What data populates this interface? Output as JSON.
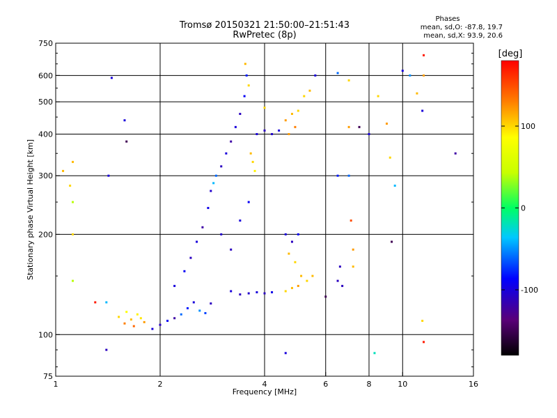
{
  "header": {
    "title": "Tromsø 20150321 21:50:00–21:51:43",
    "subtitle": "RwPretec (8p)"
  },
  "stats": {
    "heading": "Phases",
    "line_o": "mean, sd,O: -87.8, 19.7",
    "line_x": "mean, sd,X:  93.9, 20.6"
  },
  "colorbar": {
    "unit_label": "[deg]",
    "ticks": [
      {
        "value": 100,
        "label": "100"
      },
      {
        "value": 0,
        "label": "0"
      },
      {
        "value": -100,
        "label": "-100"
      }
    ],
    "range": [
      -180,
      180
    ],
    "colors": [
      "#000000",
      "#5a0078",
      "#0000ff",
      "#00c8ff",
      "#00ff64",
      "#c8ff00",
      "#ffff00",
      "#ff8000",
      "#ff0000"
    ]
  },
  "chart_data": {
    "type": "scatter",
    "title": "Tromsø 20150321 21:50:00–21:51:43",
    "subtitle": "RwPretec (8p)",
    "xlabel": "Frequency [MHz]",
    "ylabel": "Stationary phase Virtual Height [km]",
    "x_scale": "log2",
    "y_scale": "log",
    "xlim": [
      1,
      16
    ],
    "ylim": [
      75,
      750
    ],
    "x_ticks": [
      {
        "value": 1,
        "label": "1"
      },
      {
        "value": 2,
        "label": "2"
      },
      {
        "value": 4,
        "label": "4"
      },
      {
        "value": 6,
        "label": "6"
      },
      {
        "value": 8,
        "label": "8"
      },
      {
        "value": 10,
        "label": "10"
      },
      {
        "value": 16,
        "label": "16"
      }
    ],
    "y_ticks": [
      {
        "value": 75,
        "label": "75"
      },
      {
        "value": 100,
        "label": "100"
      },
      {
        "value": 200,
        "label": "200"
      },
      {
        "value": 300,
        "label": "300"
      },
      {
        "value": 400,
        "label": "400"
      },
      {
        "value": 500,
        "label": "500"
      },
      {
        "value": 600,
        "label": "600"
      },
      {
        "value": 750,
        "label": "750"
      }
    ],
    "x_gridlines": [
      2,
      4,
      6,
      8,
      10
    ],
    "y_gridlines": [
      100,
      200,
      300,
      400,
      500,
      600
    ],
    "grid": true,
    "color_variable": "phase (deg)",
    "color_range": [
      -180,
      180
    ],
    "points": [
      {
        "f": 1.52,
        "h": 113,
        "phase": 100
      },
      {
        "f": 1.58,
        "h": 108,
        "phase": 130
      },
      {
        "f": 1.65,
        "h": 111,
        "phase": 110
      },
      {
        "f": 1.72,
        "h": 115,
        "phase": 90
      },
      {
        "f": 1.8,
        "h": 109,
        "phase": 120
      },
      {
        "f": 1.6,
        "h": 117,
        "phase": 85
      },
      {
        "f": 1.68,
        "h": 106,
        "phase": 140
      },
      {
        "f": 1.76,
        "h": 112,
        "phase": 95
      },
      {
        "f": 1.9,
        "h": 104,
        "phase": -100
      },
      {
        "f": 2.0,
        "h": 107,
        "phase": -110
      },
      {
        "f": 2.1,
        "h": 110,
        "phase": -90
      },
      {
        "f": 2.2,
        "h": 112,
        "phase": -120
      },
      {
        "f": 2.3,
        "h": 115,
        "phase": -60
      },
      {
        "f": 2.4,
        "h": 120,
        "phase": -80
      },
      {
        "f": 2.5,
        "h": 125,
        "phase": -100
      },
      {
        "f": 2.6,
        "h": 118,
        "phase": -50
      },
      {
        "f": 2.7,
        "h": 116,
        "phase": -70
      },
      {
        "f": 2.8,
        "h": 124,
        "phase": -110
      },
      {
        "f": 2.2,
        "h": 140,
        "phase": -100
      },
      {
        "f": 2.35,
        "h": 155,
        "phase": -90
      },
      {
        "f": 2.45,
        "h": 170,
        "phase": -110
      },
      {
        "f": 2.55,
        "h": 190,
        "phase": -100
      },
      {
        "f": 2.65,
        "h": 210,
        "phase": -120
      },
      {
        "f": 2.75,
        "h": 240,
        "phase": -95
      },
      {
        "f": 2.8,
        "h": 270,
        "phase": -105
      },
      {
        "f": 2.9,
        "h": 300,
        "phase": -60
      },
      {
        "f": 2.85,
        "h": 285,
        "phase": -40
      },
      {
        "f": 3.0,
        "h": 320,
        "phase": -110
      },
      {
        "f": 3.1,
        "h": 350,
        "phase": -100
      },
      {
        "f": 3.2,
        "h": 380,
        "phase": -120
      },
      {
        "f": 3.3,
        "h": 420,
        "phase": -100
      },
      {
        "f": 3.4,
        "h": 460,
        "phase": -110
      },
      {
        "f": 3.5,
        "h": 520,
        "phase": -90
      },
      {
        "f": 3.55,
        "h": 600,
        "phase": -80
      },
      {
        "f": 3.52,
        "h": 650,
        "phase": 110
      },
      {
        "f": 3.6,
        "h": 560,
        "phase": 100
      },
      {
        "f": 3.65,
        "h": 350,
        "phase": 110
      },
      {
        "f": 3.7,
        "h": 330,
        "phase": 100
      },
      {
        "f": 3.75,
        "h": 310,
        "phase": 90
      },
      {
        "f": 3.2,
        "h": 135,
        "phase": -100
      },
      {
        "f": 3.4,
        "h": 132,
        "phase": -110
      },
      {
        "f": 3.6,
        "h": 133,
        "phase": -105
      },
      {
        "f": 3.8,
        "h": 134,
        "phase": -100
      },
      {
        "f": 4.0,
        "h": 133,
        "phase": -110
      },
      {
        "f": 4.2,
        "h": 134,
        "phase": -95
      },
      {
        "f": 3.0,
        "h": 200,
        "phase": -105
      },
      {
        "f": 3.2,
        "h": 180,
        "phase": -110
      },
      {
        "f": 3.4,
        "h": 220,
        "phase": -100
      },
      {
        "f": 3.6,
        "h": 250,
        "phase": -90
      },
      {
        "f": 3.8,
        "h": 400,
        "phase": -100
      },
      {
        "f": 4.0,
        "h": 410,
        "phase": -110
      },
      {
        "f": 4.2,
        "h": 400,
        "phase": -105
      },
      {
        "f": 4.4,
        "h": 410,
        "phase": -100
      },
      {
        "f": 4.0,
        "h": 480,
        "phase": 100
      },
      {
        "f": 4.6,
        "h": 440,
        "phase": 120
      },
      {
        "f": 4.8,
        "h": 460,
        "phase": 110
      },
      {
        "f": 5.0,
        "h": 470,
        "phase": 100
      },
      {
        "f": 4.9,
        "h": 420,
        "phase": 130
      },
      {
        "f": 4.7,
        "h": 400,
        "phase": 120
      },
      {
        "f": 5.2,
        "h": 520,
        "phase": 100
      },
      {
        "f": 5.4,
        "h": 540,
        "phase": 110
      },
      {
        "f": 4.6,
        "h": 200,
        "phase": -100
      },
      {
        "f": 4.8,
        "h": 190,
        "phase": -110
      },
      {
        "f": 5.0,
        "h": 200,
        "phase": -90
      },
      {
        "f": 4.7,
        "h": 175,
        "phase": 110
      },
      {
        "f": 4.9,
        "h": 165,
        "phase": 100
      },
      {
        "f": 5.1,
        "h": 150,
        "phase": 110
      },
      {
        "f": 5.3,
        "h": 145,
        "phase": 100
      },
      {
        "f": 5.5,
        "h": 150,
        "phase": 110
      },
      {
        "f": 4.6,
        "h": 135,
        "phase": 100
      },
      {
        "f": 4.8,
        "h": 138,
        "phase": 110
      },
      {
        "f": 5.0,
        "h": 140,
        "phase": 120
      },
      {
        "f": 5.6,
        "h": 600,
        "phase": -100
      },
      {
        "f": 6.5,
        "h": 610,
        "phase": -60
      },
      {
        "f": 6.5,
        "h": 300,
        "phase": -80
      },
      {
        "f": 7.0,
        "h": 580,
        "phase": 100
      },
      {
        "f": 7.0,
        "h": 420,
        "phase": 120
      },
      {
        "f": 7.0,
        "h": 300,
        "phase": -60
      },
      {
        "f": 7.1,
        "h": 220,
        "phase": 150
      },
      {
        "f": 7.2,
        "h": 180,
        "phase": 120
      },
      {
        "f": 7.2,
        "h": 160,
        "phase": 110
      },
      {
        "f": 6.6,
        "h": 160,
        "phase": -110
      },
      {
        "f": 6.7,
        "h": 140,
        "phase": -110
      },
      {
        "f": 7.5,
        "h": 420,
        "phase": -150
      },
      {
        "f": 8.0,
        "h": 400,
        "phase": -100
      },
      {
        "f": 8.5,
        "h": 520,
        "phase": 100
      },
      {
        "f": 9.0,
        "h": 430,
        "phase": 120
      },
      {
        "f": 9.2,
        "h": 340,
        "phase": 100
      },
      {
        "f": 9.3,
        "h": 190,
        "phase": -150
      },
      {
        "f": 9.5,
        "h": 280,
        "phase": -40
      },
      {
        "f": 10.0,
        "h": 620,
        "phase": -100
      },
      {
        "f": 10.5,
        "h": 600,
        "phase": -50
      },
      {
        "f": 11.0,
        "h": 530,
        "phase": 110
      },
      {
        "f": 11.5,
        "h": 690,
        "phase": 170
      },
      {
        "f": 11.5,
        "h": 600,
        "phase": 120
      },
      {
        "f": 11.4,
        "h": 470,
        "phase": -100
      },
      {
        "f": 11.4,
        "h": 110,
        "phase": 100
      },
      {
        "f": 11.5,
        "h": 95,
        "phase": 170
      },
      {
        "f": 14.2,
        "h": 350,
        "phase": -120
      },
      {
        "f": 1.05,
        "h": 310,
        "phase": 110
      },
      {
        "f": 1.1,
        "h": 280,
        "phase": 100
      },
      {
        "f": 1.12,
        "h": 330,
        "phase": 110
      },
      {
        "f": 1.12,
        "h": 250,
        "phase": 40
      },
      {
        "f": 1.12,
        "h": 200,
        "phase": 100
      },
      {
        "f": 1.12,
        "h": 145,
        "phase": 40
      },
      {
        "f": 1.4,
        "h": 90,
        "phase": -110
      },
      {
        "f": 1.42,
        "h": 300,
        "phase": -100
      },
      {
        "f": 1.45,
        "h": 590,
        "phase": -100
      },
      {
        "f": 1.58,
        "h": 440,
        "phase": -100
      },
      {
        "f": 1.6,
        "h": 380,
        "phase": -150
      },
      {
        "f": 1.3,
        "h": 125,
        "phase": 170
      },
      {
        "f": 1.4,
        "h": 125,
        "phase": -40
      },
      {
        "f": 4.6,
        "h": 88,
        "phase": -100
      },
      {
        "f": 8.3,
        "h": 88,
        "phase": -20
      },
      {
        "f": 6.0,
        "h": 130,
        "phase": -150
      },
      {
        "f": 6.5,
        "h": 145,
        "phase": -110
      }
    ]
  }
}
